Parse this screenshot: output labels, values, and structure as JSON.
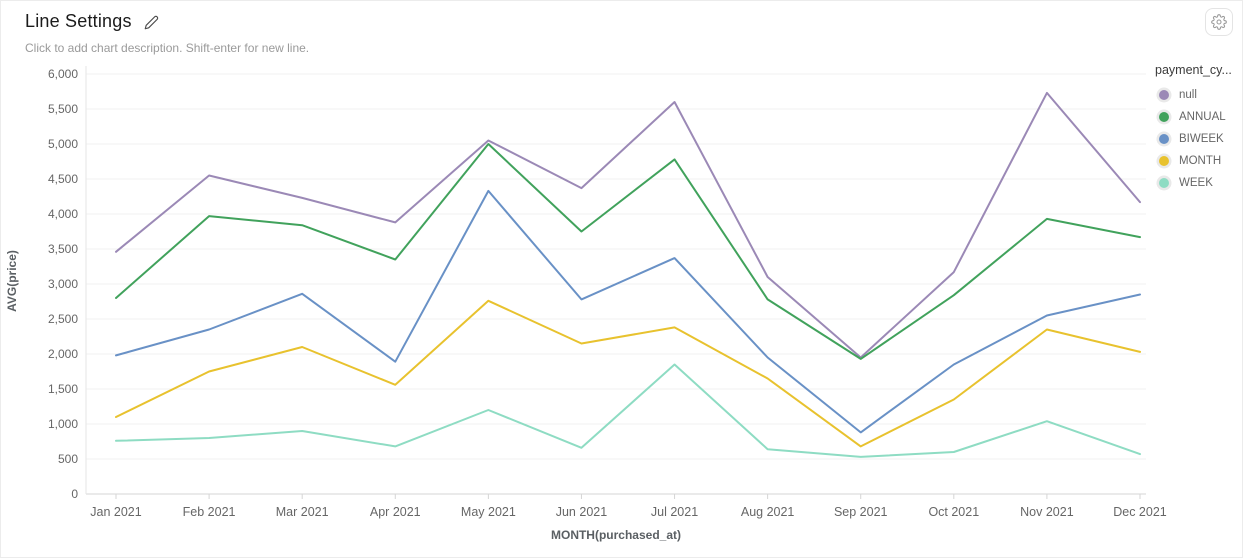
{
  "header": {
    "title": "Line Settings",
    "description_placeholder": "Click to add chart description. Shift-enter for new line."
  },
  "icons": {
    "edit": "pencil-icon",
    "settings": "gear-icon"
  },
  "chart_data": {
    "type": "line",
    "title": "Line Settings",
    "xlabel": "MONTH(purchased_at)",
    "ylabel": "AVG(price)",
    "ylim": [
      0,
      6000
    ],
    "ytick_step": 500,
    "ytick_labels": [
      "0",
      "500",
      "1,000",
      "1,500",
      "2,000",
      "2,500",
      "3,000",
      "3,500",
      "4,000",
      "4,500",
      "5,000",
      "5,500",
      "6,000"
    ],
    "grid": true,
    "legend_title": "payment_cy...",
    "legend_position": "right",
    "categories": [
      "Jan 2021",
      "Feb 2021",
      "Mar 2021",
      "Apr 2021",
      "May 2021",
      "Jun 2021",
      "Jul 2021",
      "Aug 2021",
      "Sep 2021",
      "Oct 2021",
      "Nov 2021",
      "Dec 2021"
    ],
    "series": [
      {
        "name": "null",
        "color": "#9b89b6",
        "values": [
          3460,
          4550,
          4230,
          3880,
          5050,
          4370,
          5600,
          3100,
          1950,
          3170,
          5730,
          4170
        ]
      },
      {
        "name": "ANNUAL",
        "color": "#41a25c",
        "values": [
          2800,
          3970,
          3840,
          3350,
          5000,
          3750,
          4780,
          2780,
          1930,
          2840,
          3930,
          3670
        ]
      },
      {
        "name": "BIWEEK",
        "color": "#6991c6",
        "values": [
          1980,
          2350,
          2860,
          1890,
          4330,
          2780,
          3370,
          1950,
          880,
          1850,
          2550,
          2850
        ]
      },
      {
        "name": "MONTH",
        "color": "#e8c22e",
        "values": [
          1100,
          1750,
          2100,
          1560,
          2760,
          2150,
          2380,
          1650,
          680,
          1350,
          2350,
          2030
        ]
      },
      {
        "name": "WEEK",
        "color": "#8edcc3",
        "values": [
          760,
          800,
          900,
          680,
          1200,
          660,
          1850,
          640,
          530,
          600,
          1040,
          570
        ]
      }
    ],
    "style": {
      "grid_color": "#f0f0f0",
      "axis_color": "#d5d5d5",
      "side_axis_color": "#e6e6e6",
      "tick_text_color": "#666666",
      "axis_title_color": "#5a5f63"
    }
  }
}
